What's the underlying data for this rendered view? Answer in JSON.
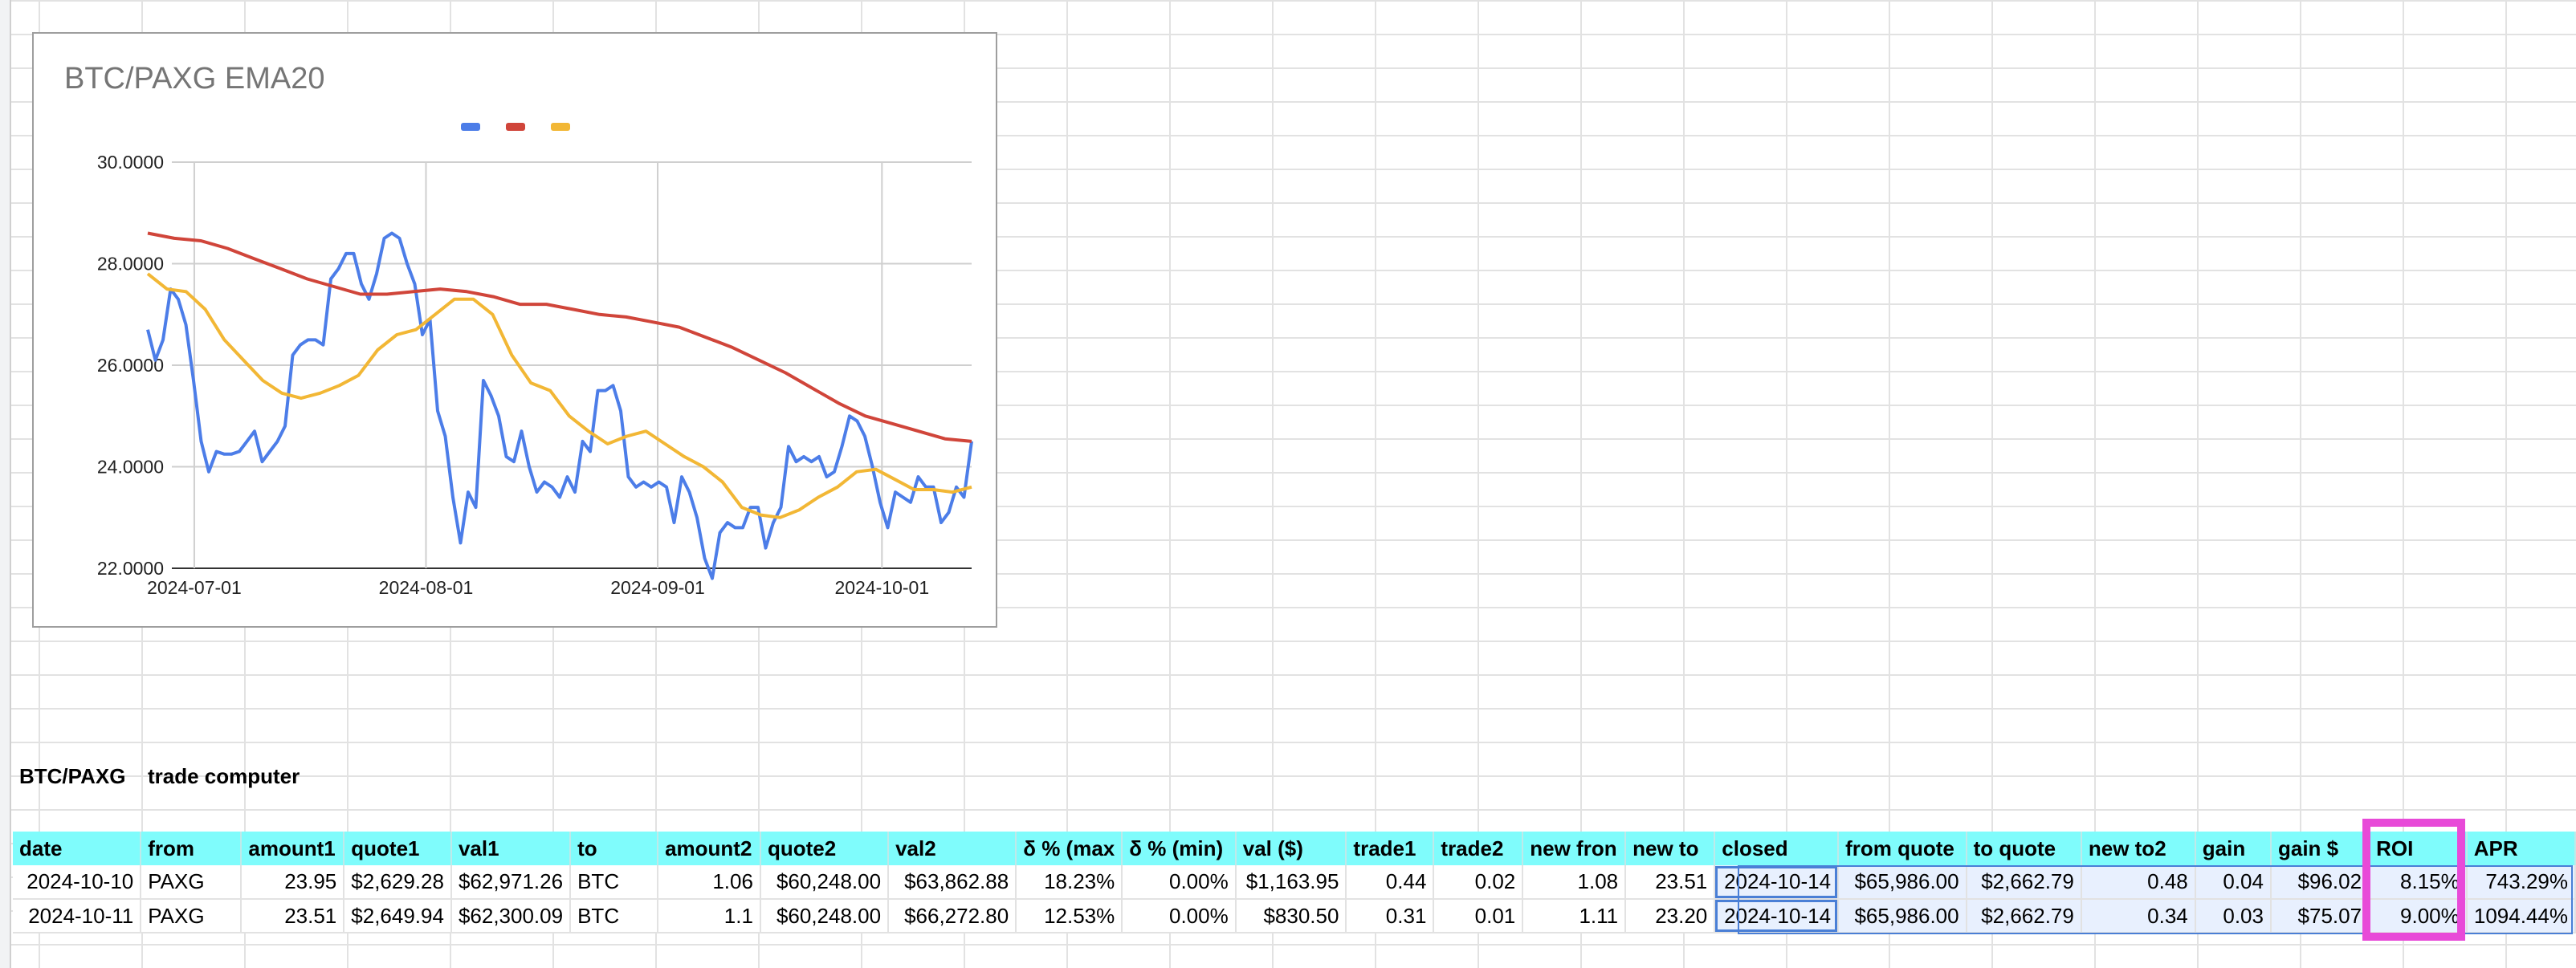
{
  "chart_data": {
    "type": "line",
    "title": "BTC/PAXG EMA20",
    "xlabel": "",
    "ylabel": "",
    "x_start": "2024-06-28",
    "x_end": "2024-10-13",
    "ylim": [
      22,
      30
    ],
    "y_ticks": [
      "22.0000",
      "24.0000",
      "26.0000",
      "28.0000",
      "30.0000"
    ],
    "x_ticks": [
      "2024-07-01",
      "2024-08-01",
      "2024-09-01",
      "2024-10-01"
    ],
    "legend_position": "top",
    "grid": true,
    "series": [
      {
        "color": "#4c7de8",
        "values": [
          26.7,
          26.1,
          26.5,
          27.5,
          27.3,
          26.8,
          25.7,
          24.5,
          23.9,
          24.3,
          24.25,
          24.25,
          24.3,
          24.5,
          24.7,
          24.1,
          24.3,
          24.5,
          24.8,
          26.2,
          26.4,
          26.5,
          26.5,
          26.4,
          27.7,
          27.9,
          28.2,
          28.2,
          27.6,
          27.3,
          27.8,
          28.5,
          28.6,
          28.5,
          28.0,
          27.6,
          26.6,
          26.9,
          25.1,
          24.6,
          23.4,
          22.5,
          23.5,
          23.2,
          25.7,
          25.4,
          25.0,
          24.2,
          24.1,
          24.7,
          24.0,
          23.5,
          23.7,
          23.6,
          23.4,
          23.8,
          23.5,
          24.5,
          24.3,
          25.5,
          25.5,
          25.6,
          25.1,
          23.8,
          23.6,
          23.7,
          23.6,
          23.7,
          23.6,
          22.9,
          23.8,
          23.5,
          23.0,
          22.2,
          21.8,
          22.7,
          22.9,
          22.8,
          22.8,
          23.2,
          23.2,
          22.4,
          22.9,
          23.2,
          24.4,
          24.1,
          24.2,
          24.1,
          24.2,
          23.8,
          23.9,
          24.4,
          25.0,
          24.9,
          24.6,
          24.0,
          23.3,
          22.8,
          23.5,
          23.4,
          23.3,
          23.8,
          23.6,
          23.6,
          22.9,
          23.1,
          23.6,
          23.4,
          24.5
        ]
      },
      {
        "color": "#d0453a",
        "values": [
          28.6,
          28.5,
          28.45,
          28.3,
          28.1,
          27.9,
          27.7,
          27.55,
          27.4,
          27.4,
          27.45,
          27.5,
          27.45,
          27.35,
          27.2,
          27.2,
          27.1,
          27.0,
          26.95,
          26.85,
          26.75,
          26.55,
          26.35,
          26.1,
          25.85,
          25.55,
          25.25,
          25.0,
          24.85,
          24.7,
          24.55,
          24.5
        ]
      },
      {
        "color": "#f2b735",
        "values": [
          27.8,
          27.5,
          27.45,
          27.1,
          26.5,
          26.1,
          25.7,
          25.45,
          25.35,
          25.45,
          25.6,
          25.8,
          26.3,
          26.6,
          26.7,
          27.0,
          27.3,
          27.3,
          27.0,
          26.2,
          25.65,
          25.5,
          25.0,
          24.7,
          24.45,
          24.6,
          24.7,
          24.45,
          24.2,
          24.0,
          23.7,
          23.2,
          23.05,
          23.0,
          23.15,
          23.4,
          23.6,
          23.9,
          23.95,
          23.75,
          23.55,
          23.55,
          23.5,
          23.6
        ]
      }
    ]
  },
  "sheet": {
    "name_cell": "BTC/PAXG",
    "subtitle_cell": "trade computer",
    "columns": [
      "date",
      "from",
      "amount1",
      "quote1",
      "val1",
      "to",
      "amount2",
      "quote2",
      "val2",
      "δ % (max",
      "δ % (min)",
      "val ($)",
      "trade1",
      "trade2",
      "new fron",
      "new to",
      "closed",
      "from quote",
      "to quote",
      "new to2",
      "gain",
      "gain $",
      "ROI",
      "APR"
    ],
    "rows": [
      [
        "2024-10-10",
        "PAXG",
        "23.95",
        "$2,629.28",
        "$62,971.26",
        "BTC",
        "1.06",
        "$60,248.00",
        "$63,862.88",
        "18.23%",
        "0.00%",
        "$1,163.95",
        "0.44",
        "0.02",
        "1.08",
        "23.51",
        "2024-10-14",
        "$65,986.00",
        "$2,662.79",
        "0.48",
        "0.04",
        "$96.02",
        "8.15%",
        "743.29%"
      ],
      [
        "2024-10-11",
        "PAXG",
        "23.51",
        "$2,649.94",
        "$62,300.09",
        "BTC",
        "1.1",
        "$60,248.00",
        "$66,272.80",
        "12.53%",
        "0.00%",
        "$830.50",
        "0.31",
        "0.01",
        "1.11",
        "23.20",
        "2024-10-14",
        "$65,986.00",
        "$2,662.79",
        "0.34",
        "0.03",
        "$75.07",
        "9.00%",
        "1094.44%"
      ]
    ]
  }
}
